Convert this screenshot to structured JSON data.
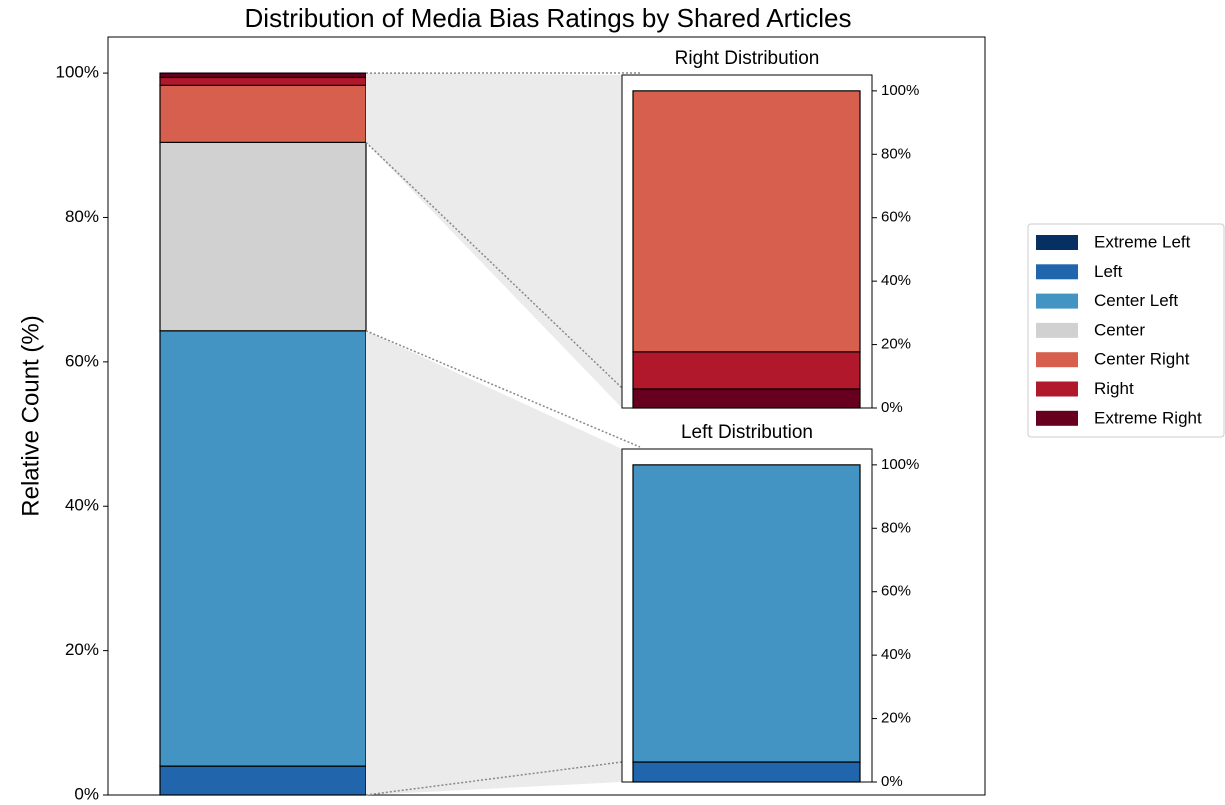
{
  "chart_data": [
    {
      "type": "stacked_bar",
      "title": "Distribution of Media Bias Ratings by Shared Articles",
      "ylabel": "Relative Count (%)",
      "ylim": [
        0,
        105
      ],
      "yticks": [
        {
          "value": 0,
          "label": "0%"
        },
        {
          "value": 20,
          "label": "20%"
        },
        {
          "value": 40,
          "label": "40%"
        },
        {
          "value": 60,
          "label": "60%"
        },
        {
          "value": 80,
          "label": "80%"
        },
        {
          "value": 100,
          "label": "100%"
        }
      ],
      "legend": "right",
      "series": [
        {
          "name": "Extreme Left",
          "color": "#053061",
          "values": [
            0
          ]
        },
        {
          "name": "Left",
          "color": "#2166ac",
          "values": [
            4.0
          ]
        },
        {
          "name": "Center Left",
          "color": "#4393c3",
          "values": [
            60.3
          ]
        },
        {
          "name": "Center",
          "color": "#d1d1d1",
          "values": [
            26.1
          ]
        },
        {
          "name": "Center Right",
          "color": "#d6604d",
          "values": [
            7.9
          ]
        },
        {
          "name": "Right",
          "color": "#b2182b",
          "values": [
            1.1
          ]
        },
        {
          "name": "Extreme Right",
          "color": "#67001f",
          "values": [
            0.6
          ]
        }
      ]
    },
    {
      "type": "stacked_bar",
      "title": "Right Distribution",
      "ylim": [
        0,
        105
      ],
      "yaxis_position": "right",
      "yticks": [
        {
          "value": 0,
          "label": "0%"
        },
        {
          "value": 20,
          "label": "20%"
        },
        {
          "value": 40,
          "label": "40%"
        },
        {
          "value": 60,
          "label": "60%"
        },
        {
          "value": 80,
          "label": "80%"
        },
        {
          "value": 100,
          "label": "100%"
        }
      ],
      "series": [
        {
          "color": "#67001f",
          "values": [
            6.0
          ]
        },
        {
          "color": "#b2182b",
          "values": [
            11.7
          ]
        },
        {
          "color": "#d6604d",
          "values": [
            82.3
          ]
        }
      ]
    },
    {
      "type": "stacked_bar",
      "title": "Left Distribution",
      "ylim": [
        0,
        105
      ],
      "yaxis_position": "right",
      "yticks": [
        {
          "value": 0,
          "label": "0%"
        },
        {
          "value": 20,
          "label": "20%"
        },
        {
          "value": 40,
          "label": "40%"
        },
        {
          "value": 60,
          "label": "60%"
        },
        {
          "value": 80,
          "label": "80%"
        },
        {
          "value": 100,
          "label": "100%"
        }
      ],
      "series": [
        {
          "color": "#053061",
          "values": [
            0
          ]
        },
        {
          "color": "#2166ac",
          "values": [
            6.3
          ]
        },
        {
          "color": "#4393c3",
          "values": [
            93.7
          ]
        }
      ]
    }
  ]
}
